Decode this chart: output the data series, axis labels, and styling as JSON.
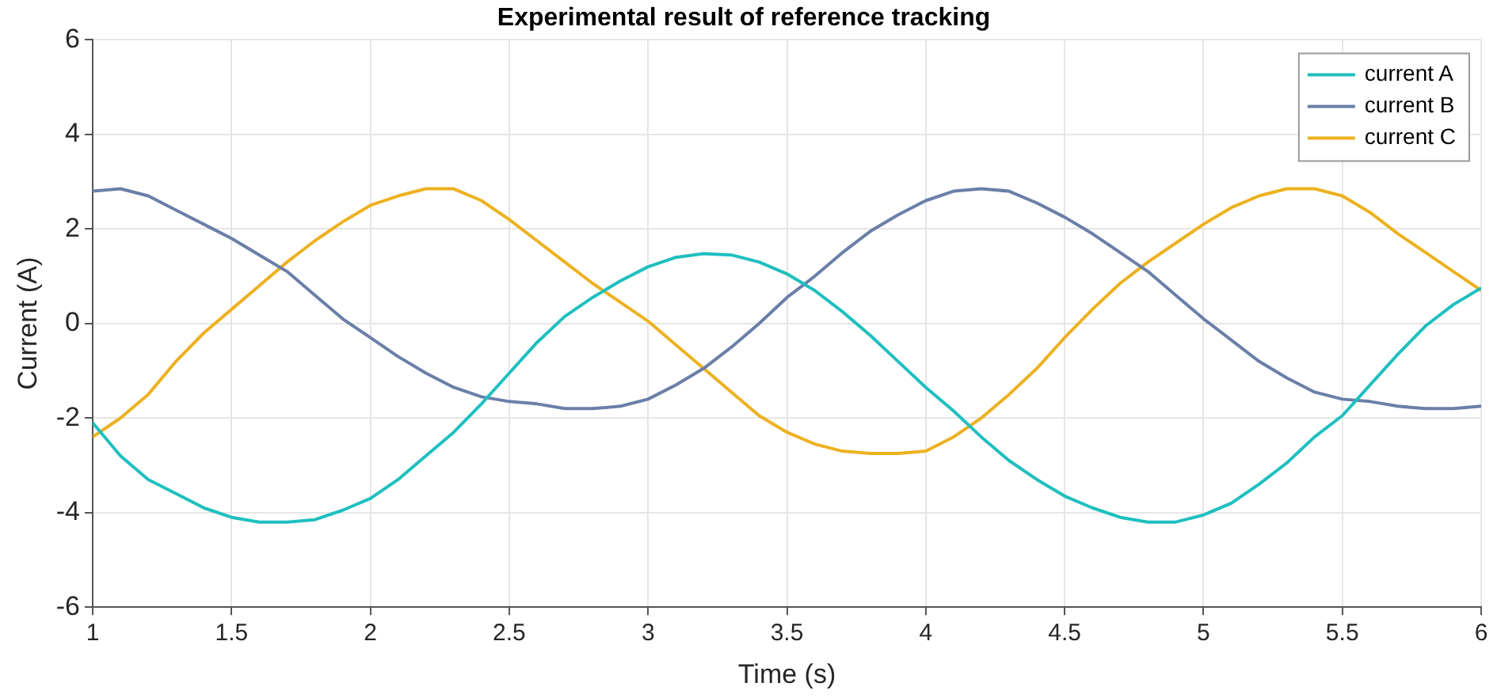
{
  "chart_data": {
    "type": "line",
    "title": "Experimental result of reference tracking",
    "xlabel": "Time (s)",
    "ylabel": "Current (A)",
    "x": [
      1,
      1.1,
      1.2,
      1.3,
      1.4,
      1.5,
      1.6,
      1.7,
      1.8,
      1.9,
      2,
      2.1,
      2.2,
      2.3,
      2.4,
      2.5,
      2.6,
      2.7,
      2.8,
      2.9,
      3,
      3.1,
      3.2,
      3.3,
      3.4,
      3.5,
      3.6,
      3.7,
      3.8,
      3.9,
      4,
      4.1,
      4.2,
      4.3,
      4.4,
      4.5,
      4.6,
      4.7,
      4.8,
      4.9,
      5,
      5.1,
      5.2,
      5.3,
      5.4,
      5.5,
      5.6,
      5.7,
      5.8,
      5.9,
      6
    ],
    "series": [
      {
        "name": "current A",
        "color": "#1fbfbf",
        "values": [
          -2.1,
          -2.8,
          -3.3,
          -3.6,
          -3.9,
          -4.1,
          -4.2,
          -4.2,
          -4.15,
          -3.95,
          -3.7,
          -3.3,
          -2.8,
          -2.3,
          -1.7,
          -1.05,
          -0.4,
          0.15,
          0.55,
          0.9,
          1.2,
          1.4,
          1.48,
          1.45,
          1.3,
          1.05,
          0.7,
          0.25,
          -0.25,
          -0.8,
          -1.35,
          -1.85,
          -2.4,
          -2.9,
          -3.3,
          -3.65,
          -3.9,
          -4.1,
          -4.2,
          -4.2,
          -4.05,
          -3.8,
          -3.4,
          -2.95,
          -2.4,
          -1.95,
          -1.3,
          -0.65,
          -0.05,
          0.4,
          0.75
        ]
      },
      {
        "name": "current B",
        "color": "#6a7fa8",
        "values": [
          2.8,
          2.85,
          2.7,
          2.4,
          2.1,
          1.8,
          1.45,
          1.1,
          0.6,
          0.1,
          -0.3,
          -0.7,
          -1.05,
          -1.35,
          -1.55,
          -1.65,
          -1.7,
          -1.8,
          -1.8,
          -1.75,
          -1.6,
          -1.3,
          -0.95,
          -0.5,
          0,
          0.55,
          1,
          1.5,
          1.95,
          2.3,
          2.6,
          2.8,
          2.85,
          2.8,
          2.55,
          2.25,
          1.9,
          1.5,
          1.1,
          0.6,
          0.1,
          -0.35,
          -0.8,
          -1.15,
          -1.45,
          -1.6,
          -1.65,
          -1.75,
          -1.8,
          -1.8,
          -1.75
        ]
      },
      {
        "name": "current C",
        "color": "#edb120",
        "values": [
          -2.4,
          -2,
          -1.5,
          -0.8,
          -0.2,
          0.3,
          0.8,
          1.3,
          1.75,
          2.15,
          2.5,
          2.7,
          2.85,
          2.85,
          2.6,
          2.2,
          1.75,
          1.3,
          0.85,
          0.45,
          0.05,
          -0.45,
          -0.95,
          -1.45,
          -1.95,
          -2.3,
          -2.55,
          -2.7,
          -2.75,
          -2.75,
          -2.7,
          -2.4,
          -2,
          -1.5,
          -0.95,
          -0.3,
          0.3,
          0.85,
          1.3,
          1.7,
          2.1,
          2.45,
          2.7,
          2.85,
          2.85,
          2.7,
          2.35,
          1.9,
          1.5,
          1.1,
          0.7
        ]
      }
    ],
    "xlim": [
      1,
      6
    ],
    "xticks": [
      1,
      1.5,
      2,
      2.5,
      3,
      3.5,
      4,
      4.5,
      5,
      5.5,
      6
    ],
    "ylim": [
      -6,
      6
    ],
    "yticks": [
      -6,
      -4,
      -2,
      0,
      2,
      4,
      6
    ],
    "grid": true,
    "legend": "top right",
    "marker": "none",
    "line_style": "solid"
  }
}
